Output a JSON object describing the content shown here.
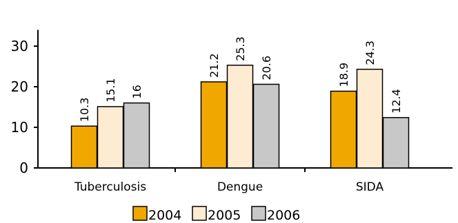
{
  "chart_data": {
    "type": "bar",
    "title": "",
    "xlabel": "",
    "ylabel": "",
    "categories": [
      "Tuberculosis",
      "Dengue",
      "SIDA"
    ],
    "series": [
      {
        "name": "2004",
        "values": [
          10.3,
          21.2,
          18.9
        ],
        "color": "#f0a800"
      },
      {
        "name": "2005",
        "values": [
          15.1,
          25.3,
          24.3
        ],
        "color": "#fdecd2"
      },
      {
        "name": "2006",
        "values": [
          16,
          20.6,
          12.4
        ],
        "color": "#c8c8c8"
      }
    ],
    "ylim": [
      0,
      34
    ],
    "yticks": [
      0,
      10,
      20,
      30
    ],
    "grid": false,
    "legend_position": "bottom-center",
    "data_label_orientation": "vertical"
  }
}
